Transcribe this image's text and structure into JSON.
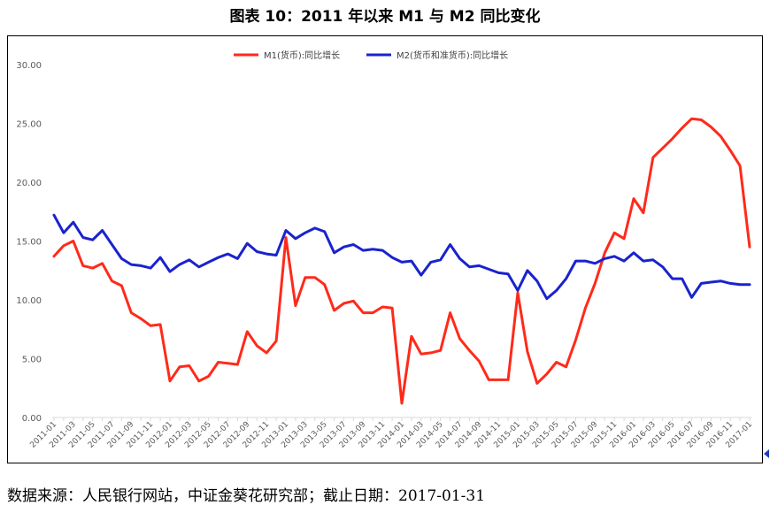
{
  "figure_title": "图表 10：2011 年以来 M1 与 M2 同比变化",
  "source_note": "数据来源：人民银行网站，中证金葵花研究部；截止日期：2017-01-31",
  "chart_data": {
    "type": "line",
    "title": "",
    "xlabel": "",
    "ylabel": "",
    "ylim": [
      0,
      30
    ],
    "yticks": [
      "0.00",
      "5.00",
      "10.00",
      "15.00",
      "20.00",
      "25.00",
      "30.00"
    ],
    "grid": false,
    "legend_position": "top-center",
    "x": [
      "2011-01",
      "2011-02",
      "2011-03",
      "2011-04",
      "2011-05",
      "2011-06",
      "2011-07",
      "2011-08",
      "2011-09",
      "2011-10",
      "2011-11",
      "2011-12",
      "2012-01",
      "2012-02",
      "2012-03",
      "2012-04",
      "2012-05",
      "2012-06",
      "2012-07",
      "2012-08",
      "2012-09",
      "2012-10",
      "2012-11",
      "2012-12",
      "2013-01",
      "2013-02",
      "2013-03",
      "2013-04",
      "2013-05",
      "2013-06",
      "2013-07",
      "2013-08",
      "2013-09",
      "2013-10",
      "2013-11",
      "2013-12",
      "2014-01",
      "2014-02",
      "2014-03",
      "2014-04",
      "2014-05",
      "2014-06",
      "2014-07",
      "2014-08",
      "2014-09",
      "2014-10",
      "2014-11",
      "2014-12",
      "2015-01",
      "2015-02",
      "2015-03",
      "2015-04",
      "2015-05",
      "2015-06",
      "2015-07",
      "2015-08",
      "2015-09",
      "2015-10",
      "2015-11",
      "2015-12",
      "2016-01",
      "2016-02",
      "2016-03",
      "2016-04",
      "2016-05",
      "2016-06",
      "2016-07",
      "2016-08",
      "2016-09",
      "2016-10",
      "2016-11",
      "2016-12",
      "2017-01"
    ],
    "xtick_labels": [
      "2011-01",
      "2011-03",
      "2011-05",
      "2011-07",
      "2011-09",
      "2011-11",
      "2012-01",
      "2012-03",
      "2012-05",
      "2012-07",
      "2012-09",
      "2012-11",
      "2013-01",
      "2013-03",
      "2013-05",
      "2013-07",
      "2013-09",
      "2013-11",
      "2014-01",
      "2014-03",
      "2014-05",
      "2014-07",
      "2014-09",
      "2014-11",
      "2015-01",
      "2015-03",
      "2015-05",
      "2015-07",
      "2015-09",
      "2015-11",
      "2016-01",
      "2016-03",
      "2016-05",
      "2016-07",
      "2016-09",
      "2016-11",
      "2017-01"
    ],
    "series": [
      {
        "name": "M1(货币):同比增长",
        "color": "#ff2a1a",
        "values": [
          13.7,
          14.6,
          15.0,
          12.9,
          12.7,
          13.1,
          11.6,
          11.2,
          8.9,
          8.4,
          7.8,
          7.9,
          3.1,
          4.3,
          4.4,
          3.1,
          3.5,
          4.7,
          4.6,
          4.5,
          7.3,
          6.1,
          5.5,
          6.5,
          15.3,
          9.5,
          11.9,
          11.9,
          11.3,
          9.1,
          9.7,
          9.9,
          8.9,
          8.9,
          9.4,
          9.3,
          1.2,
          6.9,
          5.4,
          5.5,
          5.7,
          8.9,
          6.7,
          5.7,
          4.8,
          3.2,
          3.2,
          3.2,
          10.6,
          5.6,
          2.9,
          3.7,
          4.7,
          4.3,
          6.6,
          9.3,
          11.4,
          14.0,
          15.7,
          15.2,
          18.6,
          17.4,
          22.1,
          22.9,
          23.7,
          24.6,
          25.4,
          25.3,
          24.7,
          23.9,
          22.7,
          21.4,
          14.5
        ]
      },
      {
        "name": "M2(货币和准货币):同比增长",
        "color": "#1a23cc",
        "values": [
          17.2,
          15.7,
          16.6,
          15.3,
          15.1,
          15.9,
          14.7,
          13.5,
          13.0,
          12.9,
          12.7,
          13.6,
          12.4,
          13.0,
          13.4,
          12.8,
          13.2,
          13.6,
          13.9,
          13.5,
          14.8,
          14.1,
          13.9,
          13.8,
          15.9,
          15.2,
          15.7,
          16.1,
          15.8,
          14.0,
          14.5,
          14.7,
          14.2,
          14.3,
          14.2,
          13.6,
          13.2,
          13.3,
          12.1,
          13.2,
          13.4,
          14.7,
          13.5,
          12.8,
          12.9,
          12.6,
          12.3,
          12.2,
          10.8,
          12.5,
          11.6,
          10.1,
          10.8,
          11.8,
          13.3,
          13.3,
          13.1,
          13.5,
          13.7,
          13.3,
          14.0,
          13.3,
          13.4,
          12.8,
          11.8,
          11.8,
          10.2,
          11.4,
          11.5,
          11.6,
          11.4,
          11.3,
          11.3
        ]
      }
    ]
  }
}
